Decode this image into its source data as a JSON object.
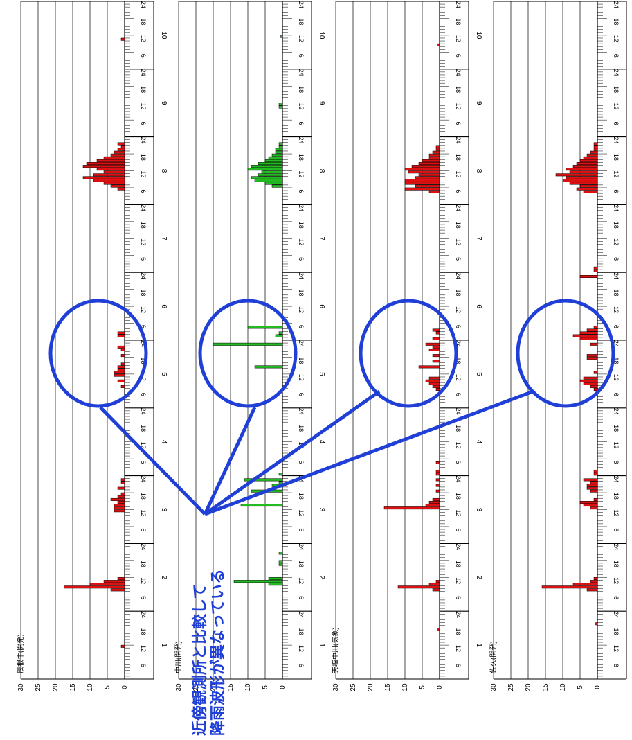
{
  "chart_data": [
    {
      "type": "bar",
      "station": "辰根牛(開発)",
      "color": "#dd1111",
      "ylim": [
        0,
        30
      ],
      "y_ticks": [
        "30",
        "25",
        "20",
        "15",
        "10",
        "5",
        "0"
      ],
      "day_labels": [
        "1",
        "2",
        "3",
        "4",
        "5",
        "6",
        "7",
        "8",
        "9",
        "10"
      ],
      "hour_labels": [
        "6",
        "12",
        "18",
        "24"
      ],
      "bars": [
        {
          "day": 1,
          "hour": 12,
          "value": 1
        },
        {
          "day": 2,
          "hour": 8,
          "value": 4
        },
        {
          "day": 2,
          "hour": 9,
          "value": 17.5
        },
        {
          "day": 2,
          "hour": 10,
          "value": 10
        },
        {
          "day": 2,
          "hour": 11,
          "value": 6
        },
        {
          "day": 2,
          "hour": 12,
          "value": 2
        },
        {
          "day": 3,
          "hour": 12,
          "value": 3
        },
        {
          "day": 3,
          "hour": 13,
          "value": 3
        },
        {
          "day": 3,
          "hour": 14,
          "value": 3
        },
        {
          "day": 3,
          "hour": 15,
          "value": 2
        },
        {
          "day": 3,
          "hour": 16,
          "value": 4
        },
        {
          "day": 3,
          "hour": 17,
          "value": 2
        },
        {
          "day": 3,
          "hour": 18,
          "value": 1
        },
        {
          "day": 3,
          "hour": 20,
          "value": 2
        },
        {
          "day": 3,
          "hour": 22,
          "value": 1
        },
        {
          "day": 3,
          "hour": 23,
          "value": 1
        },
        {
          "day": 5,
          "hour": 8,
          "value": 1
        },
        {
          "day": 5,
          "hour": 10,
          "value": 2
        },
        {
          "day": 5,
          "hour": 12,
          "value": 3
        },
        {
          "day": 5,
          "hour": 13,
          "value": 3
        },
        {
          "day": 5,
          "hour": 14,
          "value": 2
        },
        {
          "day": 5,
          "hour": 15,
          "value": 2
        },
        {
          "day": 5,
          "hour": 16,
          "value": 1
        },
        {
          "day": 5,
          "hour": 19,
          "value": 1
        },
        {
          "day": 5,
          "hour": 21,
          "value": 1
        },
        {
          "day": 5,
          "hour": 22,
          "value": 2
        },
        {
          "day": 6,
          "hour": 2,
          "value": 2
        },
        {
          "day": 6,
          "hour": 3,
          "value": 2
        },
        {
          "day": 8,
          "hour": 6,
          "value": 2
        },
        {
          "day": 8,
          "hour": 7,
          "value": 4
        },
        {
          "day": 8,
          "hour": 8,
          "value": 6
        },
        {
          "day": 8,
          "hour": 9,
          "value": 9
        },
        {
          "day": 8,
          "hour": 10,
          "value": 12
        },
        {
          "day": 8,
          "hour": 11,
          "value": 9
        },
        {
          "day": 8,
          "hour": 12,
          "value": 6
        },
        {
          "day": 8,
          "hour": 13,
          "value": 8
        },
        {
          "day": 8,
          "hour": 14,
          "value": 12
        },
        {
          "day": 8,
          "hour": 15,
          "value": 11
        },
        {
          "day": 8,
          "hour": 16,
          "value": 8
        },
        {
          "day": 8,
          "hour": 17,
          "value": 6
        },
        {
          "day": 8,
          "hour": 18,
          "value": 4
        },
        {
          "day": 8,
          "hour": 19,
          "value": 3
        },
        {
          "day": 8,
          "hour": 20,
          "value": 2
        },
        {
          "day": 8,
          "hour": 21,
          "value": 1
        },
        {
          "day": 8,
          "hour": 22,
          "value": 2
        },
        {
          "day": 10,
          "hour": 11,
          "value": 1
        }
      ]
    },
    {
      "type": "bar",
      "station": "中川(開発)",
      "color": "#22bb22",
      "ylim": [
        0,
        30
      ],
      "y_ticks": [
        "30",
        "25",
        "20",
        "15",
        "10",
        "5",
        "0"
      ],
      "day_labels": [
        "1",
        "2",
        "3",
        "4",
        "5",
        "6",
        "7",
        "8",
        "9",
        "10"
      ],
      "hour_labels": [
        "6",
        "12",
        "18",
        "24"
      ],
      "bars": [
        {
          "day": 2,
          "hour": 10,
          "value": 4
        },
        {
          "day": 2,
          "hour": 11,
          "value": 14
        },
        {
          "day": 2,
          "hour": 12,
          "value": 4
        },
        {
          "day": 2,
          "hour": 17,
          "value": 1
        },
        {
          "day": 2,
          "hour": 18,
          "value": 1
        },
        {
          "day": 2,
          "hour": 21,
          "value": 1
        },
        {
          "day": 3,
          "hour": 14,
          "value": 12
        },
        {
          "day": 3,
          "hour": 19,
          "value": 9
        },
        {
          "day": 3,
          "hour": 21,
          "value": 3
        },
        {
          "day": 3,
          "hour": 22,
          "value": 1
        },
        {
          "day": 3,
          "hour": 23,
          "value": 11
        },
        {
          "day": 4,
          "hour": 1,
          "value": 1
        },
        {
          "day": 5,
          "hour": 15,
          "value": 8
        },
        {
          "day": 5,
          "hour": 23,
          "value": 20
        },
        {
          "day": 6,
          "hour": 2,
          "value": 2
        },
        {
          "day": 6,
          "hour": 3,
          "value": 1
        },
        {
          "day": 6,
          "hour": 5,
          "value": 10
        },
        {
          "day": 8,
          "hour": 7,
          "value": 3
        },
        {
          "day": 8,
          "hour": 8,
          "value": 5
        },
        {
          "day": 8,
          "hour": 9,
          "value": 8
        },
        {
          "day": 8,
          "hour": 10,
          "value": 9
        },
        {
          "day": 8,
          "hour": 11,
          "value": 7
        },
        {
          "day": 8,
          "hour": 12,
          "value": 6
        },
        {
          "day": 8,
          "hour": 13,
          "value": 10
        },
        {
          "day": 8,
          "hour": 14,
          "value": 9
        },
        {
          "day": 8,
          "hour": 15,
          "value": 7
        },
        {
          "day": 8,
          "hour": 16,
          "value": 5
        },
        {
          "day": 8,
          "hour": 17,
          "value": 4
        },
        {
          "day": 8,
          "hour": 18,
          "value": 3
        },
        {
          "day": 8,
          "hour": 19,
          "value": 2
        },
        {
          "day": 8,
          "hour": 20,
          "value": 2
        },
        {
          "day": 8,
          "hour": 21,
          "value": 1
        },
        {
          "day": 8,
          "hour": 22,
          "value": 1
        },
        {
          "day": 9,
          "hour": 11,
          "value": 1
        },
        {
          "day": 9,
          "hour": 12,
          "value": 1
        },
        {
          "day": 10,
          "hour": 12,
          "value": 0.5
        }
      ]
    },
    {
      "type": "bar",
      "station": "天塩中川(気象)",
      "color": "#dd1111",
      "ylim": [
        0,
        30
      ],
      "y_ticks": [
        "30",
        "25",
        "20",
        "15",
        "10",
        "5",
        "0"
      ],
      "day_labels": [
        "1",
        "2",
        "3",
        "4",
        "5",
        "6",
        "7",
        "8",
        "9",
        "10"
      ],
      "hour_labels": [
        "6",
        "12",
        "18",
        "24"
      ],
      "bars": [
        {
          "day": 1,
          "hour": 18,
          "value": 0.5
        },
        {
          "day": 2,
          "hour": 8,
          "value": 2
        },
        {
          "day": 2,
          "hour": 9,
          "value": 12
        },
        {
          "day": 2,
          "hour": 10,
          "value": 3
        },
        {
          "day": 2,
          "hour": 11,
          "value": 1
        },
        {
          "day": 3,
          "hour": 13,
          "value": 16
        },
        {
          "day": 3,
          "hour": 14,
          "value": 4
        },
        {
          "day": 3,
          "hour": 15,
          "value": 3
        },
        {
          "day": 3,
          "hour": 16,
          "value": 2
        },
        {
          "day": 3,
          "hour": 19,
          "value": 1
        },
        {
          "day": 3,
          "hour": 21,
          "value": 1
        },
        {
          "day": 3,
          "hour": 23,
          "value": 1
        },
        {
          "day": 4,
          "hour": 1,
          "value": 1
        },
        {
          "day": 4,
          "hour": 2,
          "value": 1
        },
        {
          "day": 4,
          "hour": 5,
          "value": 1
        },
        {
          "day": 5,
          "hour": 7,
          "value": 1
        },
        {
          "day": 5,
          "hour": 8,
          "value": 2
        },
        {
          "day": 5,
          "hour": 9,
          "value": 3
        },
        {
          "day": 5,
          "hour": 10,
          "value": 4
        },
        {
          "day": 5,
          "hour": 11,
          "value": 3
        },
        {
          "day": 5,
          "hour": 15,
          "value": 6
        },
        {
          "day": 5,
          "hour": 17,
          "value": 2
        },
        {
          "day": 5,
          "hour": 19,
          "value": 2
        },
        {
          "day": 5,
          "hour": 21,
          "value": 3
        },
        {
          "day": 5,
          "hour": 22,
          "value": 2
        },
        {
          "day": 5,
          "hour": 23,
          "value": 4
        },
        {
          "day": 6,
          "hour": 1,
          "value": 2
        },
        {
          "day": 6,
          "hour": 3,
          "value": 1
        },
        {
          "day": 6,
          "hour": 4,
          "value": 2
        },
        {
          "day": 8,
          "hour": 5,
          "value": 3
        },
        {
          "day": 8,
          "hour": 6,
          "value": 10
        },
        {
          "day": 8,
          "hour": 7,
          "value": 7
        },
        {
          "day": 8,
          "hour": 8,
          "value": 10
        },
        {
          "day": 8,
          "hour": 9,
          "value": 10
        },
        {
          "day": 8,
          "hour": 10,
          "value": 7
        },
        {
          "day": 8,
          "hour": 11,
          "value": 6
        },
        {
          "day": 8,
          "hour": 12,
          "value": 9
        },
        {
          "day": 8,
          "hour": 13,
          "value": 10
        },
        {
          "day": 8,
          "hour": 14,
          "value": 8
        },
        {
          "day": 8,
          "hour": 15,
          "value": 6
        },
        {
          "day": 8,
          "hour": 16,
          "value": 5
        },
        {
          "day": 8,
          "hour": 17,
          "value": 3
        },
        {
          "day": 8,
          "hour": 18,
          "value": 3
        },
        {
          "day": 8,
          "hour": 19,
          "value": 2
        },
        {
          "day": 8,
          "hour": 20,
          "value": 1
        },
        {
          "day": 8,
          "hour": 21,
          "value": 1
        },
        {
          "day": 10,
          "hour": 9,
          "value": 0.5
        }
      ]
    },
    {
      "type": "bar",
      "station": "佐久(開発)",
      "color": "#dd1111",
      "ylim": [
        0,
        30
      ],
      "y_ticks": [
        "30",
        "25",
        "20",
        "15",
        "10",
        "5",
        "0"
      ],
      "day_labels": [
        "1",
        "2",
        "3",
        "4",
        "5",
        "6",
        "7",
        "8",
        "9",
        "10"
      ],
      "hour_labels": [
        "6",
        "12",
        "18",
        "24"
      ],
      "bars": [
        {
          "day": 1,
          "hour": 20,
          "value": 0.5
        },
        {
          "day": 2,
          "hour": 8,
          "value": 3
        },
        {
          "day": 2,
          "hour": 9,
          "value": 16
        },
        {
          "day": 2,
          "hour": 10,
          "value": 7
        },
        {
          "day": 2,
          "hour": 11,
          "value": 2
        },
        {
          "day": 2,
          "hour": 12,
          "value": 1
        },
        {
          "day": 3,
          "hour": 13,
          "value": 2
        },
        {
          "day": 3,
          "hour": 14,
          "value": 4
        },
        {
          "day": 3,
          "hour": 15,
          "value": 5
        },
        {
          "day": 3,
          "hour": 16,
          "value": 1
        },
        {
          "day": 3,
          "hour": 19,
          "value": 2
        },
        {
          "day": 3,
          "hour": 20,
          "value": 3
        },
        {
          "day": 3,
          "hour": 21,
          "value": 3
        },
        {
          "day": 3,
          "hour": 22,
          "value": 2
        },
        {
          "day": 3,
          "hour": 23,
          "value": 4
        },
        {
          "day": 4,
          "hour": 1,
          "value": 1
        },
        {
          "day": 4,
          "hour": 2,
          "value": 1
        },
        {
          "day": 5,
          "hour": 7,
          "value": 1
        },
        {
          "day": 5,
          "hour": 8,
          "value": 2
        },
        {
          "day": 5,
          "hour": 9,
          "value": 4
        },
        {
          "day": 5,
          "hour": 10,
          "value": 5
        },
        {
          "day": 5,
          "hour": 11,
          "value": 4
        },
        {
          "day": 5,
          "hour": 13,
          "value": 1
        },
        {
          "day": 5,
          "hour": 18,
          "value": 3
        },
        {
          "day": 5,
          "hour": 19,
          "value": 3
        },
        {
          "day": 5,
          "hour": 23,
          "value": 2
        },
        {
          "day": 6,
          "hour": 1,
          "value": 5
        },
        {
          "day": 6,
          "hour": 2,
          "value": 7
        },
        {
          "day": 6,
          "hour": 3,
          "value": 5
        },
        {
          "day": 6,
          "hour": 4,
          "value": 3
        },
        {
          "day": 6,
          "hour": 5,
          "value": 1
        },
        {
          "day": 6,
          "hour": 23,
          "value": 5
        },
        {
          "day": 7,
          "hour": 1,
          "value": 1
        },
        {
          "day": 7,
          "hour": 2,
          "value": 1
        },
        {
          "day": 8,
          "hour": 5,
          "value": 4
        },
        {
          "day": 8,
          "hour": 6,
          "value": 6
        },
        {
          "day": 8,
          "hour": 7,
          "value": 5
        },
        {
          "day": 8,
          "hour": 8,
          "value": 8
        },
        {
          "day": 8,
          "hour": 9,
          "value": 10
        },
        {
          "day": 8,
          "hour": 10,
          "value": 9
        },
        {
          "day": 8,
          "hour": 11,
          "value": 12
        },
        {
          "day": 8,
          "hour": 12,
          "value": 8
        },
        {
          "day": 8,
          "hour": 13,
          "value": 9
        },
        {
          "day": 8,
          "hour": 14,
          "value": 7
        },
        {
          "day": 8,
          "hour": 15,
          "value": 6
        },
        {
          "day": 8,
          "hour": 16,
          "value": 5
        },
        {
          "day": 8,
          "hour": 17,
          "value": 4
        },
        {
          "day": 8,
          "hour": 18,
          "value": 3
        },
        {
          "day": 8,
          "hour": 19,
          "value": 2
        },
        {
          "day": 8,
          "hour": 20,
          "value": 1
        },
        {
          "day": 8,
          "hour": 21,
          "value": 1
        },
        {
          "day": 8,
          "hour": 22,
          "value": 1
        }
      ]
    }
  ],
  "annotation": {
    "line1": "近傍観測所と比較して",
    "line2": "降雨波形が異なっている",
    "color": "#1f3fd6"
  }
}
